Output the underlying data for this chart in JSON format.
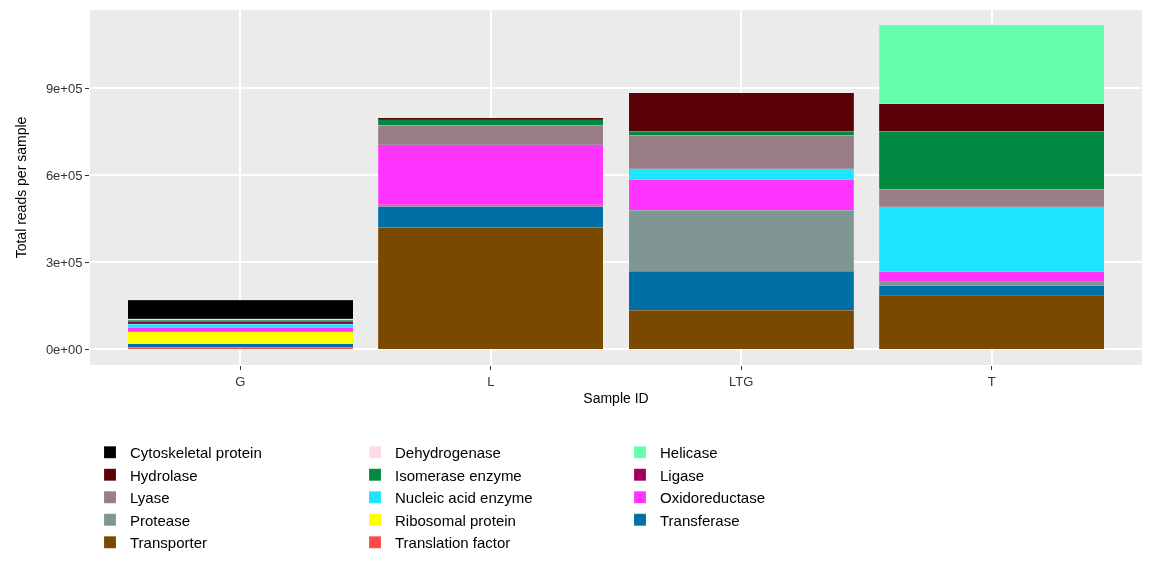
{
  "chart_data": {
    "type": "bar",
    "stacked": true,
    "xlabel": "Sample ID",
    "ylabel": "Total reads per sample",
    "categories": [
      "G",
      "L",
      "LTG",
      "T"
    ],
    "series": [
      {
        "name": "Translation factor",
        "color": "#ff4a46",
        "values": [
          7000,
          null,
          null,
          null
        ]
      },
      {
        "name": "Transporter",
        "color": "#7a4900",
        "values": [
          null,
          420000,
          133000,
          184000
        ]
      },
      {
        "name": "Transferase",
        "color": "#006fa6",
        "values": [
          12000,
          71000,
          135000,
          34000
        ]
      },
      {
        "name": "Ribosomal protein",
        "color": "#ffff00",
        "values": [
          40000,
          null,
          null,
          null
        ]
      },
      {
        "name": "Protease",
        "color": "#809693",
        "values": [
          null,
          7000,
          210000,
          14000
        ]
      },
      {
        "name": "Oxidoreductase",
        "color": "#ff34ff",
        "values": [
          15000,
          207000,
          105000,
          35000
        ]
      },
      {
        "name": "Nucleic acid enzyme",
        "color": "#1ce6ff",
        "values": [
          12000,
          null,
          38000,
          224000
        ]
      },
      {
        "name": "Lyase",
        "color": "#997d87",
        "values": [
          null,
          66000,
          116000,
          60000
        ]
      },
      {
        "name": "Ligase",
        "color": "#a30059",
        "values": [
          9000,
          null,
          null,
          null
        ]
      },
      {
        "name": "Isomerase enzyme",
        "color": "#008941",
        "values": [
          4000,
          20000,
          14000,
          200000
        ]
      },
      {
        "name": "Hydrolase",
        "color": "#5a0007",
        "values": [
          null,
          7000,
          133000,
          94000
        ]
      },
      {
        "name": "Helicase",
        "color": "#63ffac",
        "values": [
          null,
          null,
          null,
          271000
        ]
      },
      {
        "name": "Dehydrogenase",
        "color": "#ffdbe5",
        "values": [
          5000,
          null,
          null,
          null
        ]
      },
      {
        "name": "Cytoskeletal protein",
        "color": "#000000",
        "values": [
          64000,
          null,
          null,
          null
        ]
      }
    ],
    "ylim": [
      -55000,
      1169000
    ],
    "yticks": [
      {
        "value": 0,
        "label": "0e+00"
      },
      {
        "value": 300000,
        "label": "3e+05"
      },
      {
        "value": 600000,
        "label": "6e+05"
      },
      {
        "value": 900000,
        "label": "9e+05"
      }
    ],
    "grid": true,
    "legend": "bottom"
  }
}
